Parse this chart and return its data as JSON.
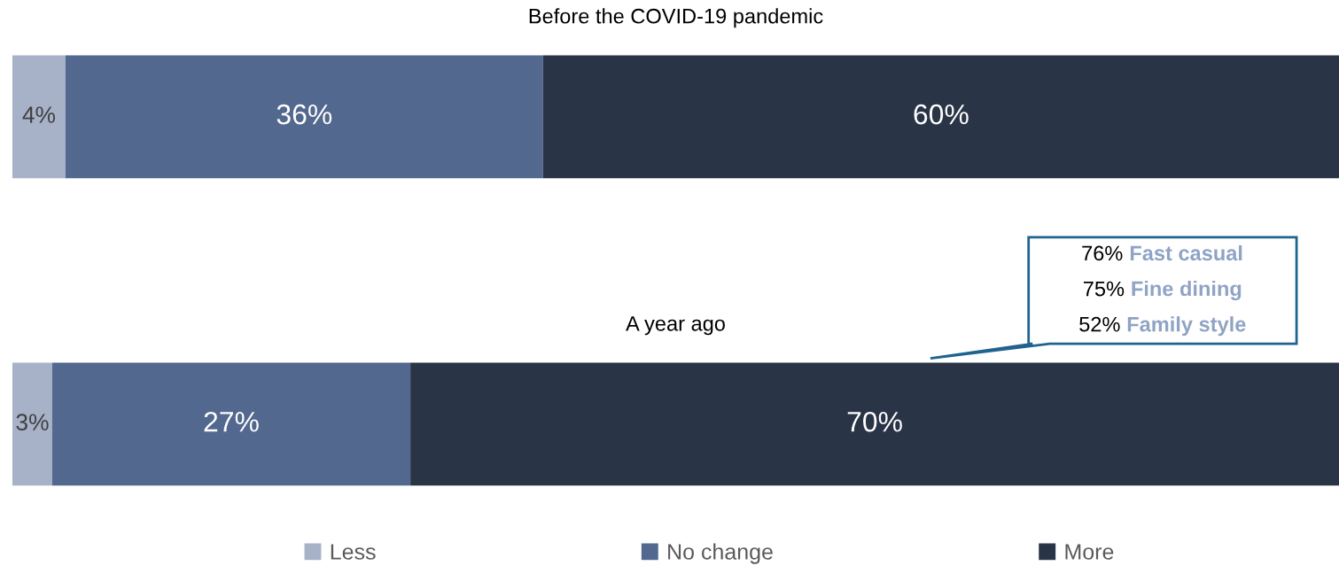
{
  "chart_data": {
    "type": "bar",
    "orientation": "horizontal",
    "stacked": true,
    "categories": [
      "Before the COVID-19 pandemic",
      "A year ago"
    ],
    "series": [
      {
        "name": "Less",
        "color": "#a7b1c8",
        "values": [
          4,
          3
        ],
        "value_labels": [
          "4%",
          "3%"
        ]
      },
      {
        "name": "No change",
        "color": "#53688e",
        "values": [
          36,
          27
        ],
        "value_labels": [
          "36%",
          "27%"
        ]
      },
      {
        "name": "More",
        "color": "#2a3447",
        "values": [
          60,
          70
        ],
        "value_labels": [
          "60%",
          "70%"
        ]
      }
    ],
    "legend": "bottom",
    "annotations": [
      "76% Fast casual\n75% Fine dining\n52% Family style"
    ]
  }
}
